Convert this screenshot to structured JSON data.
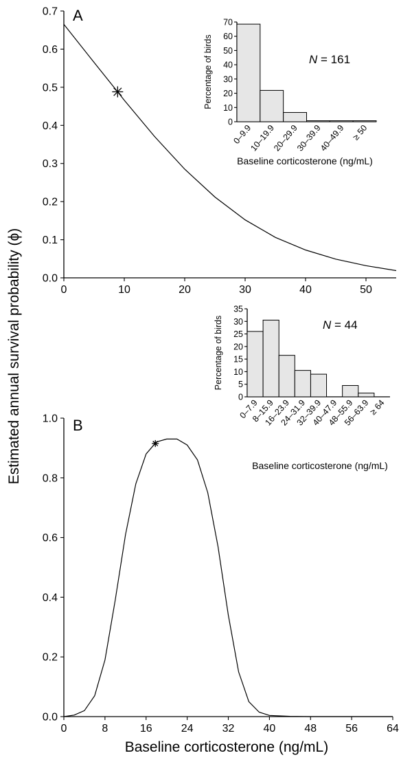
{
  "y_axis_label": "Estimated annual survival probability (ϕ)",
  "chart_data": [
    {
      "panel": "A",
      "type": "line",
      "xlabel": "",
      "ylabel": "",
      "xlim": [
        0,
        55
      ],
      "ylim": [
        0,
        0.7
      ],
      "xticks": [
        "0",
        "10",
        "20",
        "30",
        "40",
        "50"
      ],
      "yticks": [
        "0.0",
        "0.1",
        "0.2",
        "0.3",
        "0.4",
        "0.5",
        "0.6",
        "0.7"
      ],
      "x": [
        0,
        5,
        8.9,
        10,
        15,
        20,
        25,
        30,
        35,
        40,
        45,
        50,
        55
      ],
      "y": [
        0.665,
        0.565,
        0.488,
        0.466,
        0.371,
        0.285,
        0.212,
        0.152,
        0.106,
        0.073,
        0.049,
        0.032,
        0.019
      ],
      "marker": {
        "x": 8.9,
        "y": 0.488
      },
      "inset": {
        "type": "bar",
        "n_label_prefix": "N",
        "n_label_suffix": " = 161",
        "ylabel": "Percentage of birds",
        "xlabel": "Baseline corticosterone (ng/mL)",
        "ylim": [
          0,
          70
        ],
        "yticks": [
          "0",
          "10",
          "20",
          "30",
          "40",
          "50",
          "60",
          "70"
        ],
        "categories": [
          "0–9.9",
          "10–19.9",
          "20–29.9",
          "30–39.9",
          "40–49.9",
          "≥ 50"
        ],
        "values": [
          68.5,
          22,
          6.5,
          0.7,
          0.7,
          0.7
        ]
      }
    },
    {
      "panel": "B",
      "type": "line",
      "xlabel": "Baseline corticosterone (ng/mL)",
      "ylabel": "",
      "xlim": [
        0,
        64
      ],
      "ylim": [
        0,
        1.0
      ],
      "xticks": [
        "0",
        "8",
        "16",
        "24",
        "32",
        "40",
        "48",
        "56",
        "64"
      ],
      "yticks": [
        "0.0",
        "0.2",
        "0.4",
        "0.6",
        "0.8",
        "1.0"
      ],
      "x": [
        0,
        2,
        4,
        6,
        8,
        10,
        12,
        14,
        16,
        18,
        20,
        22,
        24,
        26,
        28,
        30,
        32,
        34,
        36,
        38,
        40,
        44,
        48,
        52,
        56,
        60,
        64
      ],
      "y": [
        0.0,
        0.005,
        0.02,
        0.07,
        0.19,
        0.39,
        0.61,
        0.78,
        0.88,
        0.92,
        0.93,
        0.93,
        0.91,
        0.86,
        0.75,
        0.57,
        0.34,
        0.15,
        0.05,
        0.015,
        0.004,
        0.001,
        0.0,
        0.0,
        0.0,
        0.0,
        0.0
      ],
      "marker": {
        "x": 17.8,
        "y": 0.915
      },
      "inset": {
        "type": "bar",
        "n_label_prefix": "N",
        "n_label_suffix": " = 44",
        "ylabel": "Percentage of birds",
        "xlabel": "Baseline corticosterone (ng/mL)",
        "ylim": [
          0,
          35
        ],
        "yticks": [
          "0",
          "5",
          "10",
          "15",
          "20",
          "25",
          "30",
          "35"
        ],
        "categories": [
          "0–7.9",
          "8–15.9",
          "16–23.9",
          "24–31.9",
          "32–39.9",
          "40–47.9",
          "48–55.9",
          "56–63.9",
          "≥ 64"
        ],
        "values": [
          26,
          30.5,
          16.5,
          10.5,
          9,
          0,
          4.5,
          1.5,
          0
        ]
      }
    }
  ]
}
